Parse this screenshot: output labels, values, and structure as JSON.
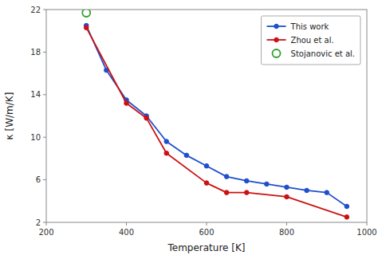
{
  "chart_data": {
    "type": "line",
    "xlabel": "Temperature [K]",
    "ylabel": "κ [W/m/K]",
    "series": [
      {
        "name": "This work",
        "color": "#1f4fcc",
        "marker": "circle",
        "line_style": "solid",
        "x": [
          300,
          350,
          400,
          450,
          500,
          550,
          600,
          650,
          700,
          750,
          800,
          850,
          900,
          950
        ],
        "values": [
          20.5,
          16.3,
          13.5,
          12.0,
          9.6,
          8.3,
          7.3,
          6.3,
          5.9,
          5.6,
          5.3,
          5.0,
          4.8,
          3.5
        ]
      },
      {
        "name": "Zhou et al.",
        "color": "#cc1111",
        "marker": "circle",
        "line_style": "solid",
        "x": [
          300,
          400,
          450,
          500,
          600,
          650,
          700,
          800,
          950
        ],
        "values": [
          20.3,
          13.2,
          11.8,
          8.5,
          5.7,
          4.8,
          4.8,
          4.4,
          2.5
        ]
      },
      {
        "name": "Stojanovic et al.",
        "type": "scatter",
        "color": "#2ca02c",
        "marker": "open-circle",
        "line_style": "none",
        "x": [
          300
        ],
        "values": [
          21.7
        ]
      }
    ],
    "xlim": [
      200,
      1000
    ],
    "ylim": [
      2,
      22
    ],
    "xticks": [
      200,
      400,
      600,
      800,
      1000
    ],
    "yticks": [
      2,
      6,
      10,
      14,
      18,
      22
    ],
    "grid": false,
    "legend": "upper-right"
  }
}
